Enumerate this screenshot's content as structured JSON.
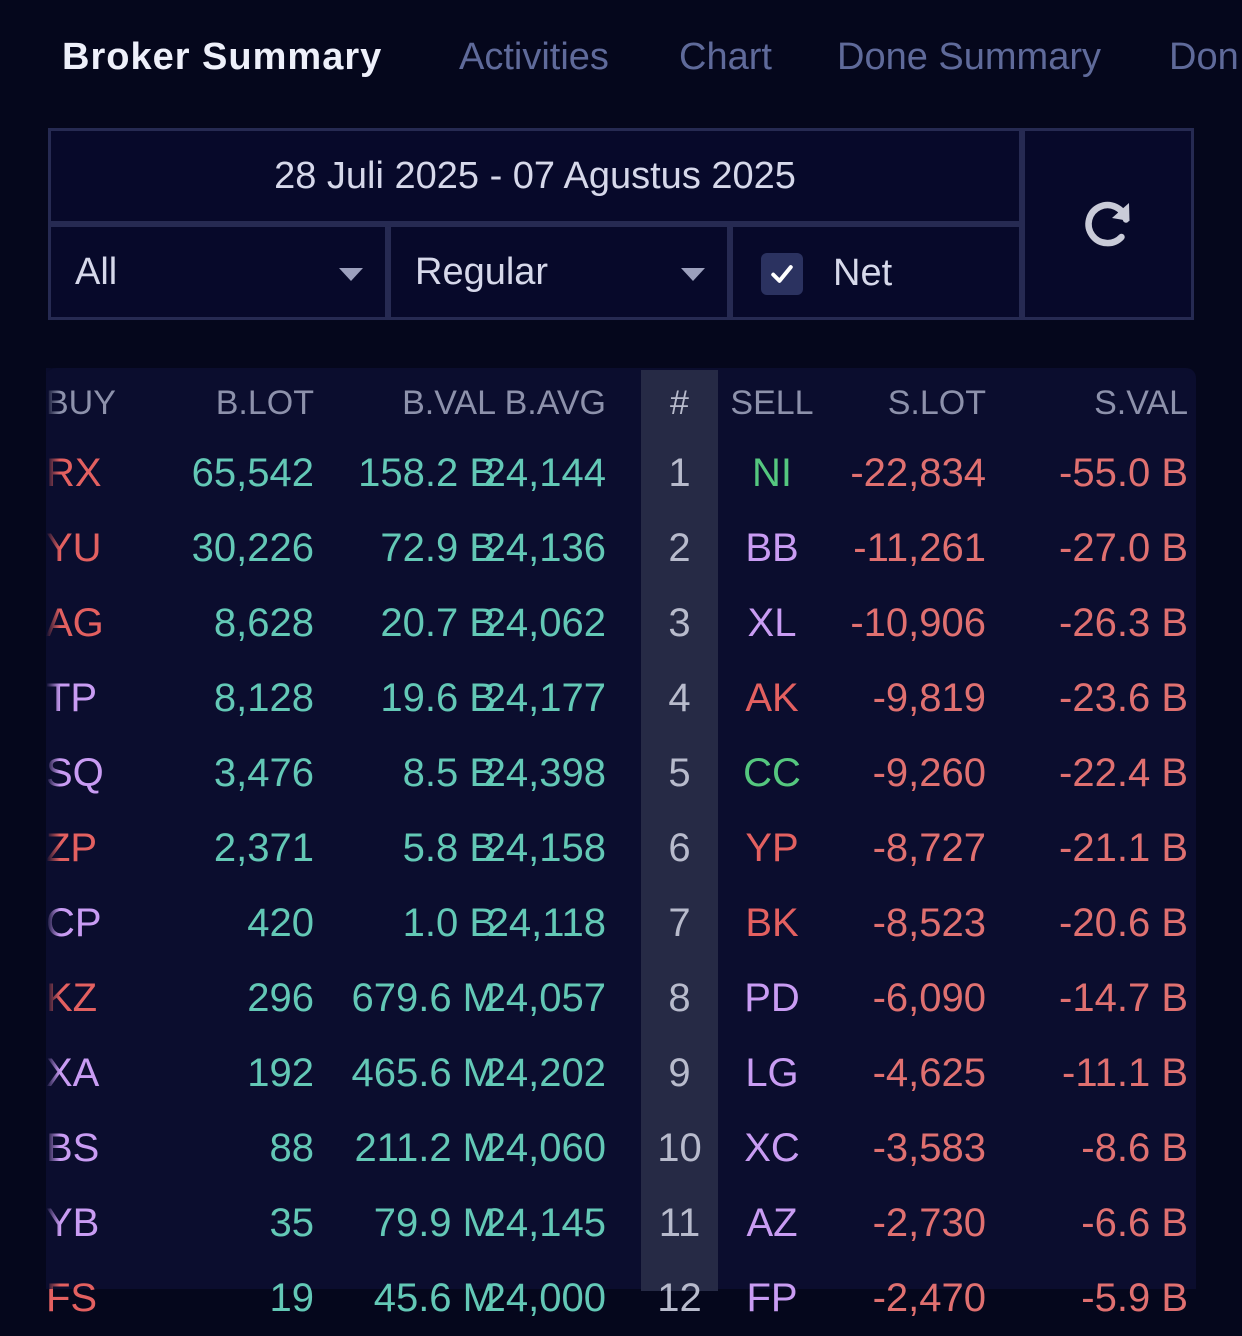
{
  "tabs": [
    {
      "label": "Broker Summary",
      "active": true
    },
    {
      "label": "Activities",
      "active": false
    },
    {
      "label": "Chart",
      "active": false
    },
    {
      "label": "Done Summary",
      "active": false
    },
    {
      "label": "Don",
      "active": false
    }
  ],
  "filters": {
    "date_range": "28 Juli 2025 - 07 Agustus 2025",
    "board": "All",
    "market": "Regular",
    "net_label": "Net",
    "net_checked": true,
    "refresh_icon": "refresh-icon"
  },
  "table": {
    "headers": {
      "buy": "BUY",
      "blot": "B.LOT",
      "bval": "B.VAL",
      "bavg": "B.AVG",
      "num": "#",
      "sell": "SELL",
      "slot": "S.LOT",
      "sval": "S.VAL"
    },
    "colors": {
      "red": "#e36060",
      "purple": "#c99cf3",
      "green": "#55c77f",
      "positive": "#63c8b6",
      "negative": "#e07070"
    },
    "rows": [
      {
        "buy": "RX",
        "buy_color": "red",
        "blot": "65,542",
        "bval": "158.2 B",
        "bavg": "24,144",
        "num": "1",
        "sell": "NI",
        "sell_color": "green",
        "slot": "-22,834",
        "sval": "-55.0 B"
      },
      {
        "buy": "YU",
        "buy_color": "red",
        "blot": "30,226",
        "bval": "72.9 B",
        "bavg": "24,136",
        "num": "2",
        "sell": "BB",
        "sell_color": "purple",
        "slot": "-11,261",
        "sval": "-27.0 B"
      },
      {
        "buy": "AG",
        "buy_color": "red",
        "blot": "8,628",
        "bval": "20.7 B",
        "bavg": "24,062",
        "num": "3",
        "sell": "XL",
        "sell_color": "purple",
        "slot": "-10,906",
        "sval": "-26.3 B"
      },
      {
        "buy": "TP",
        "buy_color": "purple",
        "blot": "8,128",
        "bval": "19.6 B",
        "bavg": "24,177",
        "num": "4",
        "sell": "AK",
        "sell_color": "red",
        "slot": "-9,819",
        "sval": "-23.6 B"
      },
      {
        "buy": "SQ",
        "buy_color": "purple",
        "blot": "3,476",
        "bval": "8.5 B",
        "bavg": "24,398",
        "num": "5",
        "sell": "CC",
        "sell_color": "green",
        "slot": "-9,260",
        "sval": "-22.4 B"
      },
      {
        "buy": "ZP",
        "buy_color": "red",
        "blot": "2,371",
        "bval": "5.8 B",
        "bavg": "24,158",
        "num": "6",
        "sell": "YP",
        "sell_color": "red",
        "slot": "-8,727",
        "sval": "-21.1 B"
      },
      {
        "buy": "CP",
        "buy_color": "purple",
        "blot": "420",
        "bval": "1.0 B",
        "bavg": "24,118",
        "num": "7",
        "sell": "BK",
        "sell_color": "red",
        "slot": "-8,523",
        "sval": "-20.6 B"
      },
      {
        "buy": "KZ",
        "buy_color": "red",
        "blot": "296",
        "bval": "679.6 M",
        "bavg": "24,057",
        "num": "8",
        "sell": "PD",
        "sell_color": "purple",
        "slot": "-6,090",
        "sval": "-14.7 B"
      },
      {
        "buy": "XA",
        "buy_color": "purple",
        "blot": "192",
        "bval": "465.6 M",
        "bavg": "24,202",
        "num": "9",
        "sell": "LG",
        "sell_color": "purple",
        "slot": "-4,625",
        "sval": "-11.1 B"
      },
      {
        "buy": "BS",
        "buy_color": "purple",
        "blot": "88",
        "bval": "211.2 M",
        "bavg": "24,060",
        "num": "10",
        "sell": "XC",
        "sell_color": "purple",
        "slot": "-3,583",
        "sval": "-8.6 B"
      },
      {
        "buy": "YB",
        "buy_color": "purple",
        "blot": "35",
        "bval": "79.9 M",
        "bavg": "24,145",
        "num": "11",
        "sell": "AZ",
        "sell_color": "purple",
        "slot": "-2,730",
        "sval": "-6.6 B"
      },
      {
        "buy": "FS",
        "buy_color": "red",
        "blot": "19",
        "bval": "45.6 M",
        "bavg": "24,000",
        "num": "12",
        "sell": "FP",
        "sell_color": "purple",
        "slot": "-2,470",
        "sval": "-5.9 B"
      }
    ]
  }
}
